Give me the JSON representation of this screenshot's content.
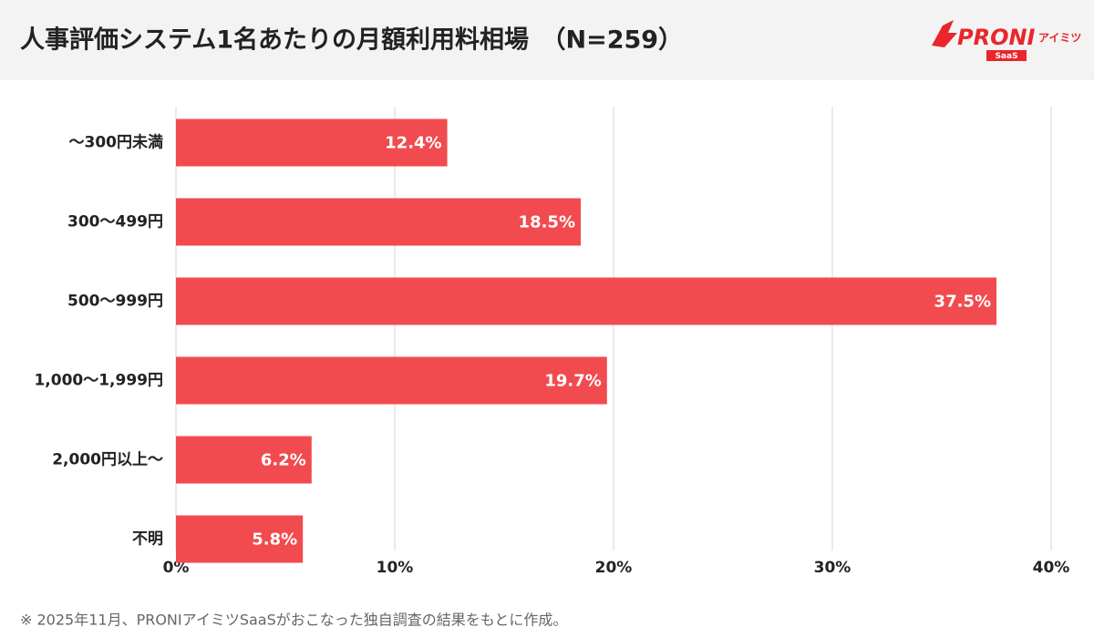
{
  "chart_data": {
    "type": "bar",
    "title": "人事評価システム1名あたりの月額利用料相場　（N=259）",
    "categories": [
      "〜300円未満",
      "300〜499円",
      "500〜999円",
      "1,000〜1,999円",
      "2,000円以上〜",
      "不明"
    ],
    "values": [
      12.4,
      18.5,
      37.5,
      19.7,
      6.2,
      5.8
    ],
    "value_labels": [
      "12.4%",
      "18.5%",
      "37.5%",
      "19.7%",
      "6.2%",
      "5.8%"
    ],
    "color": "#f24b4f",
    "xlim": [
      0,
      40
    ],
    "xticks": [
      {
        "value": 0,
        "label": "0%"
      },
      {
        "value": 10,
        "label": "10%"
      },
      {
        "value": 20,
        "label": "20%"
      },
      {
        "value": 30,
        "label": "30%"
      },
      {
        "value": 40,
        "label": "40%"
      }
    ],
    "grid": true,
    "note": "※ 2025年11月、PRONIアイミツSaaSがおこなった独自調査の結果をもとに作成。"
  },
  "logo": {
    "name": "PRONI",
    "sub": "アイミツ",
    "badge": "SaaS"
  }
}
